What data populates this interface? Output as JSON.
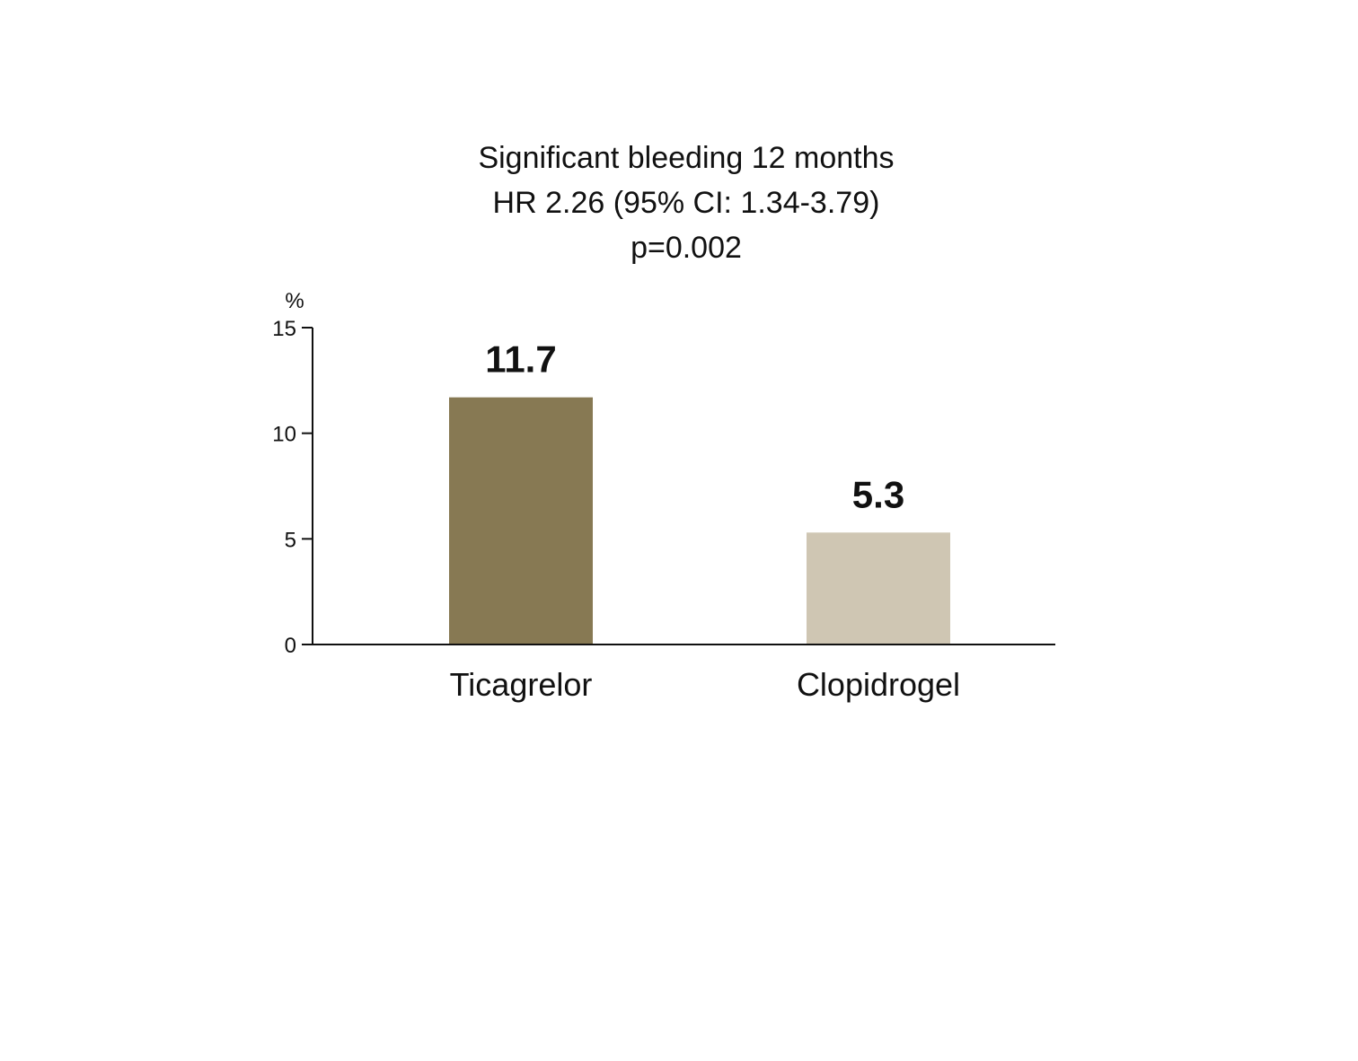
{
  "chart_data": {
    "type": "bar",
    "title_lines": [
      "Significant bleeding 12 months",
      "HR 2.26 (95% CI: 1.34-3.79)",
      "p=0.002"
    ],
    "ylabel": "%",
    "xlabel": "",
    "ylim": [
      0,
      15
    ],
    "yticks": [
      0,
      5,
      10,
      15
    ],
    "categories": [
      "Ticagrelor",
      "Clopidrogel"
    ],
    "values": [
      11.7,
      5.3
    ],
    "data_labels": [
      "11.7",
      "5.3"
    ],
    "colors": [
      "#877953",
      "#cfc6b3"
    ],
    "grid": false,
    "legend": "none"
  }
}
